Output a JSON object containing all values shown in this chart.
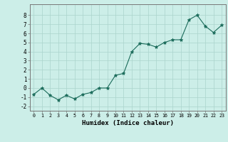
{
  "x_data": [
    0,
    1,
    2,
    3,
    4,
    5,
    6,
    7,
    8,
    9,
    10,
    11,
    12,
    13,
    14,
    15,
    16,
    17,
    18,
    19,
    20,
    21,
    22,
    23
  ],
  "y_data": [
    -0.7,
    0.0,
    -0.8,
    -1.3,
    -0.8,
    -1.2,
    -0.7,
    -0.5,
    0.0,
    0.0,
    1.4,
    1.6,
    4.0,
    4.9,
    4.8,
    4.5,
    5.0,
    5.3,
    5.3,
    7.5,
    8.0,
    6.8,
    6.1,
    6.9
  ],
  "xlabel": "Humidex (Indice chaleur)",
  "ylim": [
    -2.5,
    9.2
  ],
  "xlim": [
    -0.5,
    23.5
  ],
  "yticks": [
    -2,
    -1,
    0,
    1,
    2,
    3,
    4,
    5,
    6,
    7,
    8
  ],
  "xticks": [
    0,
    1,
    2,
    3,
    4,
    5,
    6,
    7,
    8,
    9,
    10,
    11,
    12,
    13,
    14,
    15,
    16,
    17,
    18,
    19,
    20,
    21,
    22,
    23
  ],
  "line_color": "#1a6b5a",
  "marker_color": "#1a6b5a",
  "bg_color": "#cceee8",
  "grid_color": "#aad4cc",
  "border_color": "#777777"
}
